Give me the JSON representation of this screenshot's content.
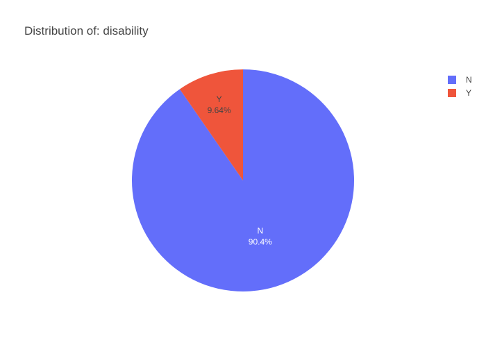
{
  "chart_data": {
    "type": "pie",
    "title": "Distribution of: disability",
    "slices": [
      {
        "label": "N",
        "value": 90.36,
        "percent_label": "90.4%",
        "color": "#636efa",
        "text_color": "#ffffff"
      },
      {
        "label": "Y",
        "value": 9.64,
        "percent_label": "9.64%",
        "color": "#ef553b",
        "text_color": "#444444"
      }
    ],
    "legend": {
      "placement": "top-right",
      "items": [
        {
          "label": "N",
          "color": "#636efa"
        },
        {
          "label": "Y",
          "color": "#ef553b"
        }
      ]
    }
  }
}
